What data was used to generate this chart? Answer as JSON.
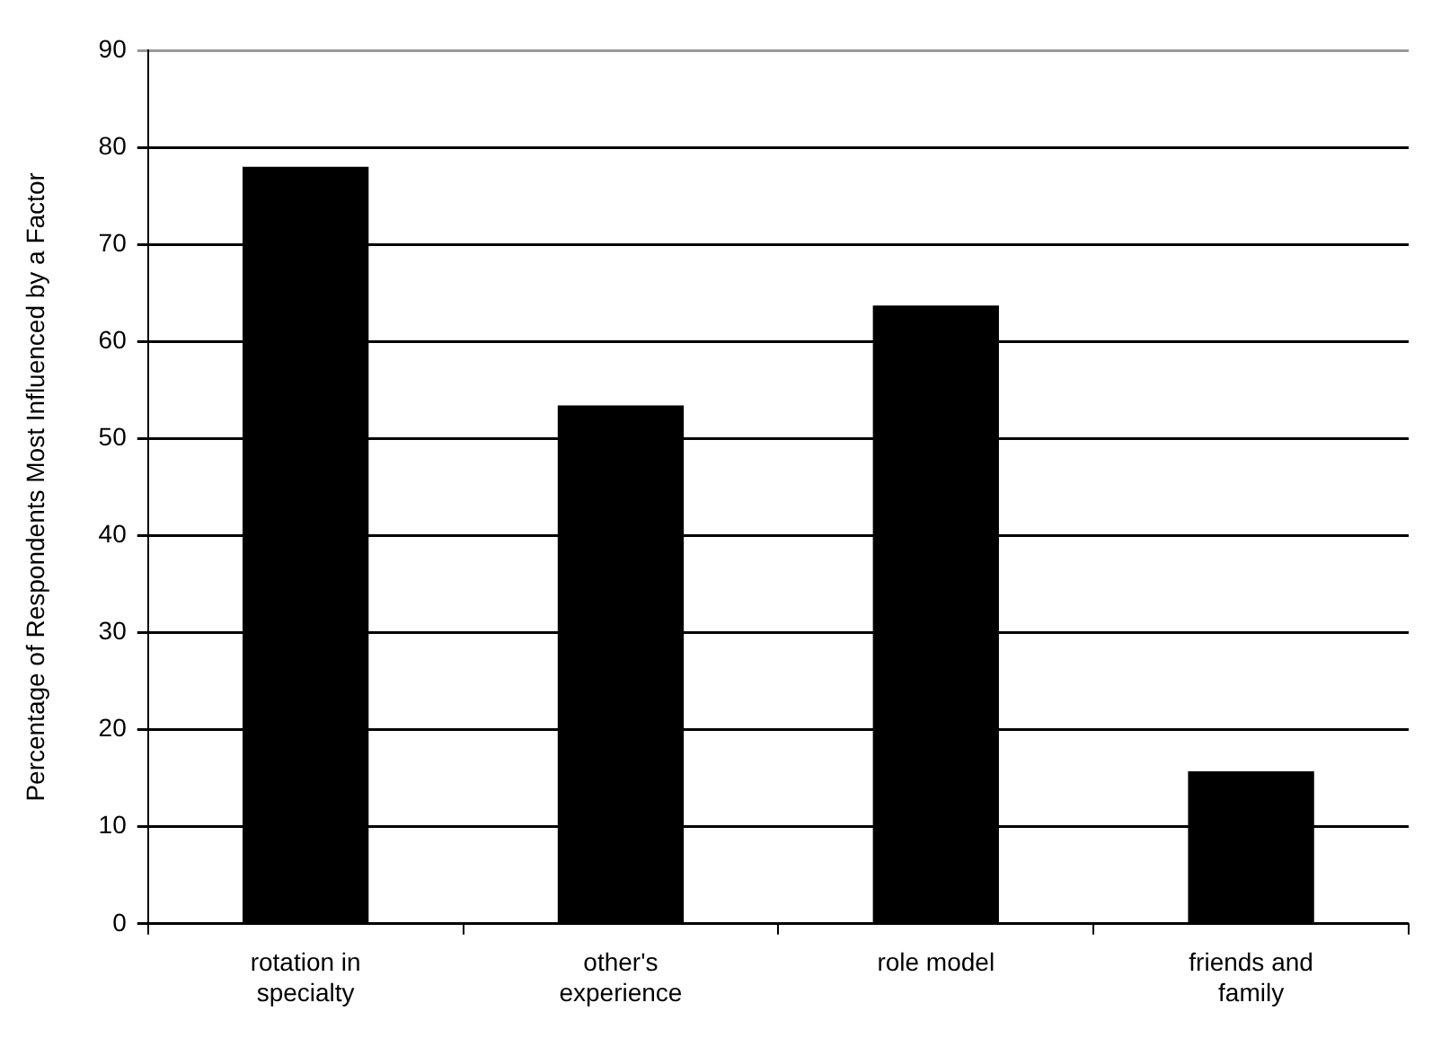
{
  "chart_data": {
    "type": "bar",
    "ylabel": "Percentage of Respondents Most Influenced by a Factor",
    "categories": [
      "rotation in specialty",
      "other's experience",
      "role model",
      "friends and family"
    ],
    "values": [
      78,
      53.4,
      63.7,
      15.7
    ],
    "color": "#000000",
    "ylim": [
      0,
      90
    ],
    "yticks": [
      0,
      10,
      20,
      30,
      40,
      50,
      60,
      70,
      80,
      90
    ],
    "grid": "y",
    "legend": false
  }
}
